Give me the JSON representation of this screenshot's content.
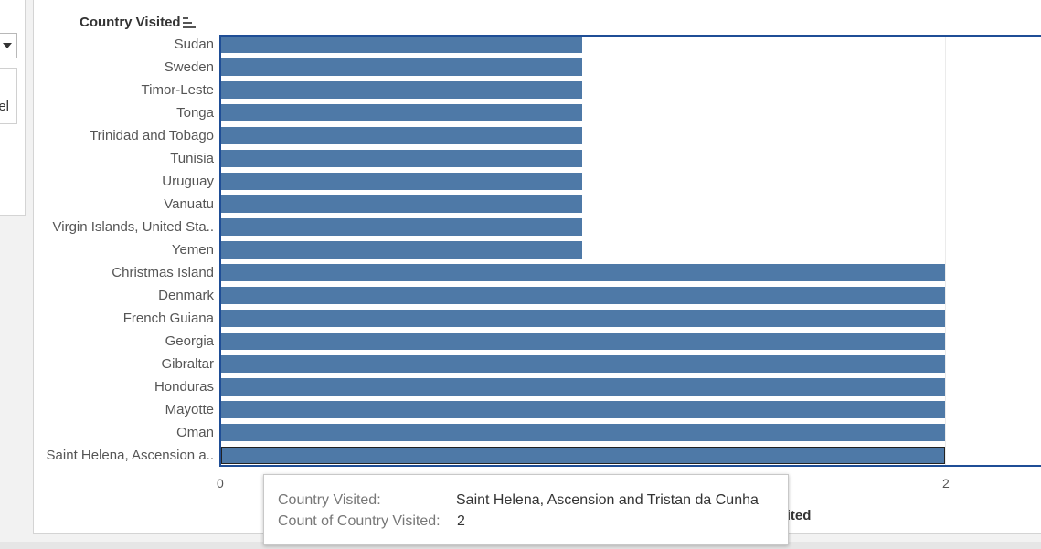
{
  "chart_data": {
    "type": "bar",
    "orientation": "horizontal",
    "ylabel": "Country Visited",
    "xlabel": "Count of Country Visited",
    "categories": [
      "Sudan",
      "Sweden",
      "Timor-Leste",
      "Tonga",
      "Trinidad and Tobago",
      "Tunisia",
      "Uruguay",
      "Vanuatu",
      "Virgin Islands, United Sta..",
      "Yemen",
      "Christmas Island",
      "Denmark",
      "French Guiana",
      "Georgia",
      "Gibraltar",
      "Honduras",
      "Mayotte",
      "Oman",
      "Saint Helena, Ascension a.."
    ],
    "values": [
      1,
      1,
      1,
      1,
      1,
      1,
      1,
      1,
      1,
      1,
      2,
      2,
      2,
      2,
      2,
      2,
      2,
      2,
      2
    ],
    "xlim": [
      0,
      2.26
    ],
    "xticks": [
      0,
      2
    ],
    "color": "#4e79a7",
    "sorted": "descending",
    "selected_index": 18
  },
  "axis_title_visible": "y Visited",
  "tooltip": {
    "rows": [
      {
        "key": "Country Visited:",
        "value": "Saint Helena, Ascension and Tristan da Cunha"
      },
      {
        "key": "Count of Country Visited:",
        "value": "2"
      }
    ]
  },
  "left_panel": {
    "partial_text": "el"
  }
}
